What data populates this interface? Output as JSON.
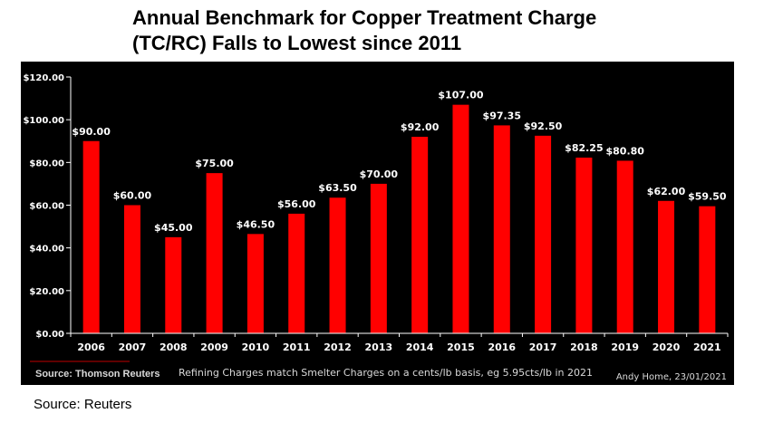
{
  "chart_data": {
    "type": "bar",
    "title_line1": "Annual Benchmark for Copper Treatment Charge",
    "title_line2": "(TC/RC) Falls to Lowest since 2011",
    "categories": [
      "2006",
      "2007",
      "2008",
      "2009",
      "2010",
      "2011",
      "2012",
      "2013",
      "2014",
      "2015",
      "2016",
      "2017",
      "2018",
      "2019",
      "2020",
      "2021"
    ],
    "values": [
      90.0,
      60.0,
      45.0,
      75.0,
      46.5,
      56.0,
      63.5,
      70.0,
      92.0,
      107.0,
      97.35,
      92.5,
      82.25,
      80.8,
      62.0,
      59.5
    ],
    "data_labels": [
      "$90.00",
      "$60.00",
      "$45.00",
      "$75.00",
      "$46.50",
      "$56.00",
      "$63.50",
      "$70.00",
      "$92.00",
      "$107.00",
      "$97.35",
      "$92.50",
      "$82.25",
      "$80.80",
      "$62.00",
      "$59.50"
    ],
    "ylim": [
      0,
      120
    ],
    "yticks": [
      0,
      20,
      40,
      60,
      80,
      100,
      120
    ],
    "ytick_labels": [
      "$0.00",
      "$20.00",
      "$40.00",
      "$60.00",
      "$80.00",
      "$100.00",
      "$120.00"
    ],
    "xlabel": "",
    "ylabel": "",
    "grid": false,
    "legend": "none",
    "source_note": "Source: Thomson Reuters",
    "footnote": "Refining Charges match Smelter Charges on a cents/lb basis, eg 5.95cts/lb in 2021",
    "credit": "Andy Home, 23/01/2021"
  },
  "caption": "Source: Reuters",
  "colors": {
    "bar": "#ff0000",
    "chart_background": "#000000",
    "text_on_chart": "#ffffff",
    "footer_text": "#d9d9d9",
    "source_underline": "#c00000"
  }
}
